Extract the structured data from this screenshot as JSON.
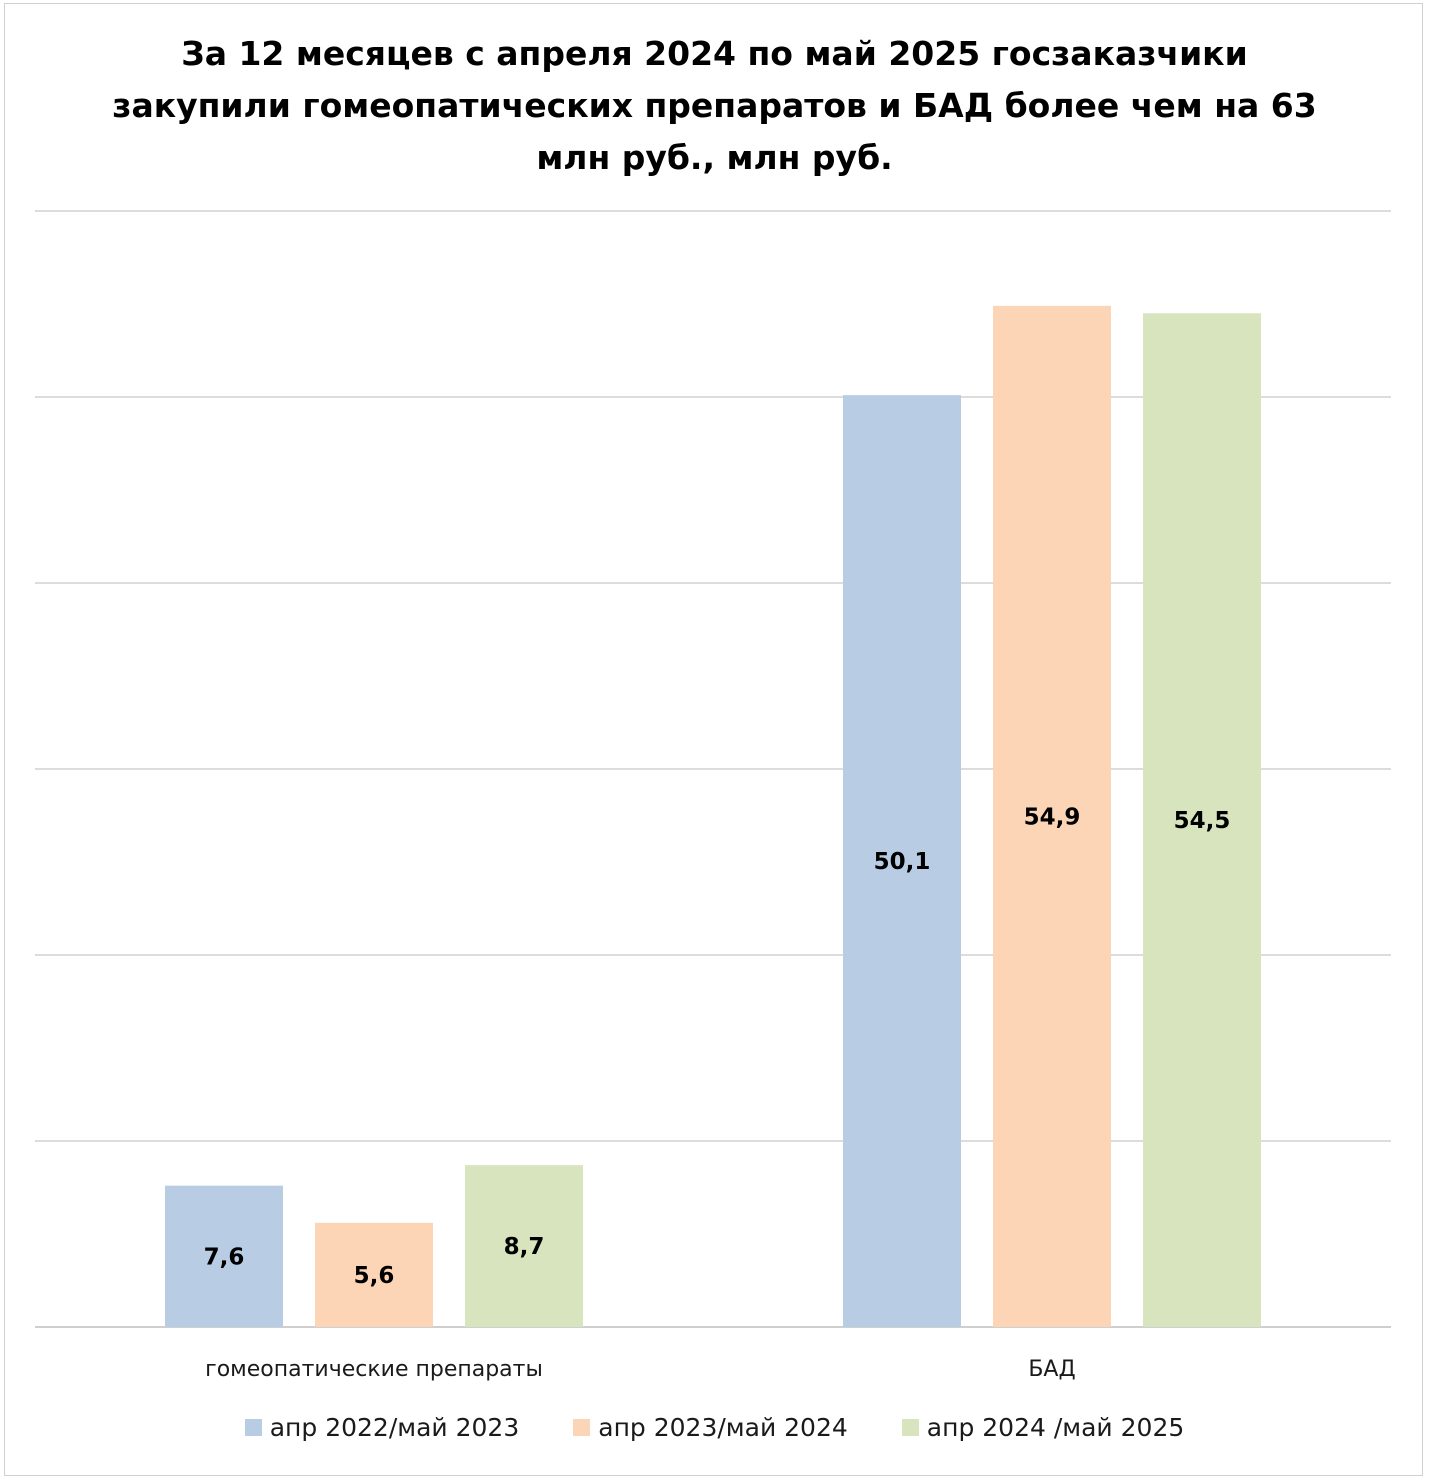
{
  "chart_data": {
    "type": "bar",
    "title_lines": [
      "За 12 месяцев с апреля 2024 по май 2025 госзаказчики",
      "закупили гомеопатических препаратов и БАД более чем на 63",
      "млн руб., млн руб."
    ],
    "categories": [
      "гомеопатические препараты",
      "БАД"
    ],
    "series": [
      {
        "name": "апр 2022/май 2023",
        "color": "#b8cce4",
        "values": [
          7.6,
          50.1
        ],
        "labels": [
          "7,6",
          "50,1"
        ]
      },
      {
        "name": "апр 2023/май 2024",
        "color": "#fbd5b5",
        "values": [
          5.6,
          54.9
        ],
        "labels": [
          "5,6",
          "54,9"
        ]
      },
      {
        "name": "апр 2024 /май 2025",
        "color": "#d7e4bd",
        "values": [
          8.7,
          54.5
        ],
        "labels": [
          "8,7",
          "54,5"
        ]
      }
    ],
    "ylim": [
      0,
      60
    ],
    "grid": true,
    "legend_position": "bottom",
    "xlabel": "",
    "ylabel": ""
  }
}
